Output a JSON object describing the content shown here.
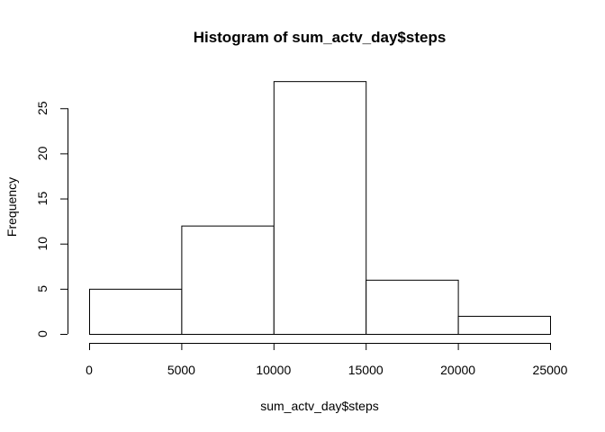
{
  "chart_data": {
    "type": "histogram",
    "title": "Histogram of sum_actv_day$steps",
    "xlabel": "sum_actv_day$steps",
    "ylabel": "Frequency",
    "bins": [
      {
        "from": 0,
        "to": 5000,
        "count": 5
      },
      {
        "from": 5000,
        "to": 10000,
        "count": 12
      },
      {
        "from": 10000,
        "to": 15000,
        "count": 28
      },
      {
        "from": 15000,
        "to": 20000,
        "count": 6
      },
      {
        "from": 20000,
        "to": 25000,
        "count": 2
      }
    ],
    "xticks": [
      0,
      5000,
      10000,
      15000,
      20000,
      25000
    ],
    "yticks": [
      0,
      5,
      10,
      15,
      20,
      25
    ],
    "xlim": [
      0,
      25000
    ],
    "ylim": [
      0,
      28
    ],
    "grid": false,
    "legend": "none",
    "bar_fill": "#ffffff",
    "bar_stroke": "#000000"
  }
}
